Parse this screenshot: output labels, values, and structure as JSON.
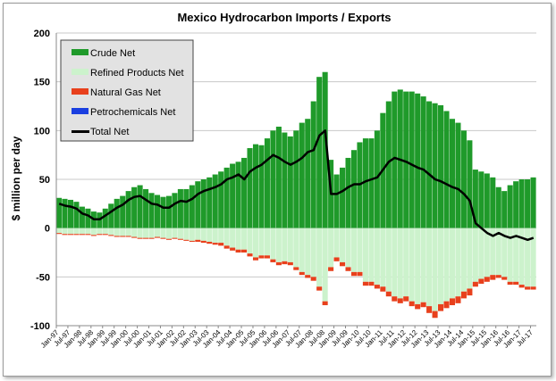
{
  "chart_data": {
    "type": "bar",
    "title": "Mexico Hydrocarbon Imports / Exports",
    "xlabel": "",
    "ylabel": "$ million per day",
    "ylim": [
      -100,
      200
    ],
    "yticks": [
      -100,
      -50,
      0,
      50,
      100,
      150,
      200
    ],
    "grid": "horizontal",
    "legend_position": "top-left",
    "x_granularity": "quarterly (approximate, from Q1 1997 to Q3 2017)",
    "x_tick_labels": [
      "Jan-97",
      "Jul-97",
      "Jan-98",
      "Jul-98",
      "Jan-99",
      "Jul-99",
      "Jan-00",
      "Jul-00",
      "Jan-01",
      "Jul-01",
      "Jan-02",
      "Jul-02",
      "Jan-03",
      "Jul-03",
      "Jan-04",
      "Jul-04",
      "Jan-05",
      "Jul-05",
      "Jan-06",
      "Jul-06",
      "Jan-07",
      "Jul-07",
      "Jan-08",
      "Jul-08",
      "Jan-09",
      "Jul-09",
      "Jan-10",
      "Jul-10",
      "Jan-11",
      "Jul-11",
      "Jan-12",
      "Jul-12",
      "Jan-13",
      "Jul-13",
      "Jan-14",
      "Jul-14",
      "Jan-15",
      "Jul-15",
      "Jan-16",
      "Jul-16",
      "Jan-17",
      "Jul-17"
    ],
    "series": [
      {
        "name": "Crude Net",
        "color": "#1f9a2a",
        "kind": "bar",
        "values": [
          31,
          30,
          29,
          27,
          22,
          20,
          17,
          16,
          20,
          25,
          30,
          33,
          38,
          42,
          44,
          40,
          36,
          34,
          32,
          33,
          36,
          40,
          40,
          44,
          48,
          50,
          52,
          55,
          58,
          62,
          66,
          68,
          72,
          82,
          86,
          85,
          92,
          100,
          104,
          98,
          94,
          100,
          108,
          112,
          130,
          155,
          160,
          70,
          55,
          62,
          72,
          80,
          88,
          92,
          92,
          100,
          118,
          130,
          140,
          142,
          140,
          140,
          138,
          135,
          130,
          128,
          126,
          120,
          112,
          108,
          100,
          90,
          60,
          58,
          56,
          52,
          42,
          38,
          44,
          48,
          50,
          50,
          52
        ]
      },
      {
        "name": "Refined Products Net",
        "color": "#ccf2cc",
        "kind": "bar",
        "values": [
          -5,
          -6,
          -6,
          -6,
          -6,
          -6,
          -7,
          -6,
          -6,
          -7,
          -8,
          -8,
          -8,
          -9,
          -10,
          -10,
          -10,
          -9,
          -10,
          -11,
          -10,
          -11,
          -12,
          -13,
          -12,
          -13,
          -14,
          -15,
          -15,
          -18,
          -20,
          -22,
          -22,
          -26,
          -30,
          -28,
          -28,
          -32,
          -35,
          -34,
          -35,
          -40,
          -45,
          -48,
          -50,
          -60,
          -75,
          -40,
          -30,
          -35,
          -40,
          -45,
          -45,
          -55,
          -55,
          -58,
          -60,
          -65,
          -70,
          -72,
          -70,
          -75,
          -78,
          -76,
          -80,
          -85,
          -78,
          -75,
          -72,
          -70,
          -65,
          -62,
          -55,
          -52,
          -50,
          -48,
          -48,
          -50,
          -55,
          -55,
          -58,
          -60,
          -60
        ]
      },
      {
        "name": "Natural Gas Net",
        "color": "#e8401c",
        "kind": "bar",
        "values": [
          -1,
          -1,
          -1,
          -1,
          -1,
          -1,
          -1,
          -1,
          -1,
          -1,
          -1,
          -1,
          -1,
          -1,
          -1,
          -1,
          -1,
          -1,
          -1,
          -1,
          -1,
          -1,
          -1,
          -1,
          -2,
          -2,
          -2,
          -2,
          -3,
          -3,
          -3,
          -3,
          -3,
          -3,
          -3,
          -3,
          -3,
          -3,
          -3,
          -3,
          -3,
          -3,
          -3,
          -3,
          -4,
          -4,
          -4,
          -4,
          -4,
          -4,
          -4,
          -4,
          -4,
          -4,
          -4,
          -4,
          -5,
          -5,
          -5,
          -5,
          -5,
          -5,
          -5,
          -5,
          -7,
          -7,
          -7,
          -7,
          -7,
          -7,
          -7,
          -7,
          -5,
          -5,
          -5,
          -5,
          -3,
          -3,
          -3,
          -3,
          -3,
          -3,
          -3
        ]
      },
      {
        "name": "Petrochemicals Net",
        "color": "#1a3fe0",
        "kind": "bar",
        "values": [
          0,
          0,
          0,
          0,
          0,
          0,
          0,
          0,
          0,
          0,
          0,
          0,
          0,
          0,
          0,
          0,
          0,
          0,
          0,
          0,
          0,
          0,
          0,
          0,
          0,
          0,
          0,
          0,
          0,
          0,
          0,
          0,
          0,
          0,
          0,
          0,
          0,
          0,
          0,
          0,
          0,
          0,
          0,
          0,
          0,
          0,
          0,
          0,
          0,
          0,
          0,
          0,
          0,
          0,
          0,
          0,
          0,
          0,
          0,
          0,
          0,
          0,
          0,
          0,
          0,
          0,
          0,
          0,
          0,
          0,
          0,
          0,
          0,
          0,
          0,
          0,
          0,
          0,
          0,
          0,
          0,
          0,
          0
        ]
      },
      {
        "name": "Total Net",
        "color": "#000000",
        "kind": "line",
        "values": [
          25,
          23,
          22,
          20,
          15,
          13,
          9,
          9,
          13,
          17,
          21,
          24,
          29,
          32,
          33,
          29,
          25,
          24,
          21,
          21,
          25,
          28,
          27,
          30,
          35,
          38,
          40,
          42,
          45,
          50,
          52,
          55,
          50,
          58,
          62,
          65,
          70,
          75,
          72,
          68,
          65,
          68,
          72,
          78,
          80,
          95,
          100,
          35,
          35,
          38,
          42,
          45,
          45,
          48,
          50,
          52,
          60,
          68,
          72,
          70,
          68,
          65,
          62,
          60,
          55,
          50,
          48,
          45,
          42,
          40,
          35,
          28,
          5,
          0,
          -5,
          -8,
          -5,
          -8,
          -10,
          -8,
          -10,
          -12,
          -10
        ]
      }
    ]
  }
}
